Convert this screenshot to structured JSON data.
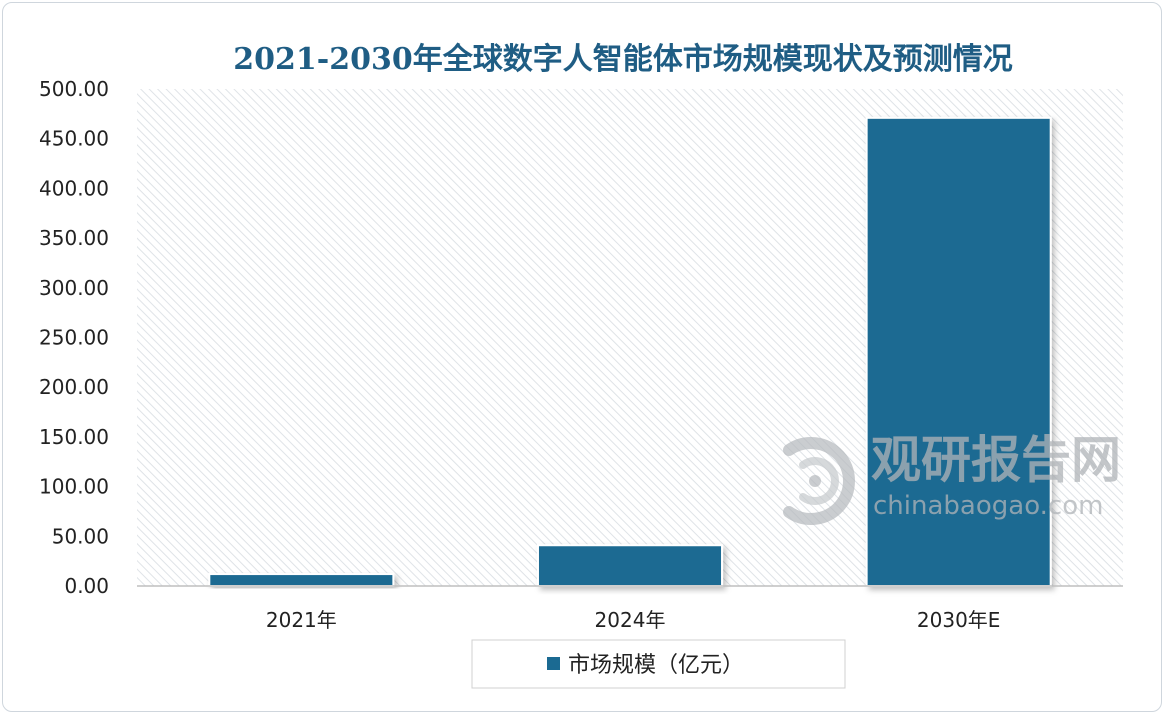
{
  "chart_data": {
    "type": "bar",
    "title": "2021-2030年全球数字人智能体市场规模现状及预测情况",
    "categories": [
      "2021年",
      "2024年",
      "2030年E"
    ],
    "series": [
      {
        "name": "市场规模（亿元）",
        "values": [
          12,
          41,
          471
        ]
      }
    ],
    "ylim": [
      0,
      500
    ],
    "yticks": [
      "0.00",
      "50.00",
      "100.00",
      "150.00",
      "200.00",
      "250.00",
      "300.00",
      "350.00",
      "400.00",
      "450.00",
      "500.00"
    ],
    "ytick_values": [
      0,
      50,
      100,
      150,
      200,
      250,
      300,
      350,
      400,
      450,
      500
    ],
    "grid": false,
    "legend_position": "bottom",
    "bar_color": "#1b6a92"
  },
  "watermark": {
    "cn": "观研报告网",
    "en": "chinabaogao.com"
  }
}
